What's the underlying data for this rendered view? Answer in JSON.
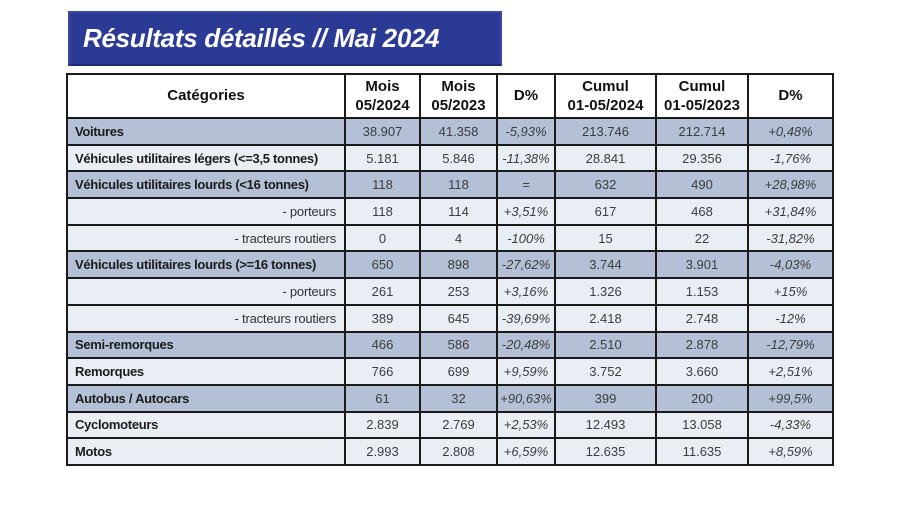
{
  "banner": {
    "title": "Résultats détaillés // Mai 2024"
  },
  "colors": {
    "banner_bg": "#2b3a94",
    "row_dark": "#b3c0d5",
    "row_light": "#e9edf4",
    "border": "#1b1b1b",
    "header_bg": "#ffffff"
  },
  "table": {
    "headers": [
      [
        "Catégories"
      ],
      [
        "Mois",
        "05/2024"
      ],
      [
        "Mois",
        "05/2023"
      ],
      [
        "D%"
      ],
      [
        "Cumul",
        "01-05/2024"
      ],
      [
        "Cumul",
        "01-05/2023"
      ],
      [
        "D%"
      ]
    ],
    "rows": [
      {
        "label": "Voitures",
        "style": "main",
        "shade": "dark",
        "values": [
          "38.907",
          "41.358",
          "-5,93%",
          "213.746",
          "212.714",
          "+0,48%"
        ]
      },
      {
        "label": "Véhicules utilitaires légers (<=3,5 tonnes)",
        "style": "main",
        "shade": "light",
        "values": [
          "5.181",
          "5.846",
          "-11,38%",
          "28.841",
          "29.356",
          "-1,76%"
        ]
      },
      {
        "label": "Véhicules utilitaires lourds (<16 tonnes)",
        "style": "main",
        "shade": "dark",
        "values": [
          "118",
          "118",
          "=",
          "632",
          "490",
          "+28,98%"
        ]
      },
      {
        "label": "- porteurs",
        "style": "sub",
        "shade": "light",
        "values": [
          "118",
          "114",
          "+3,51%",
          "617",
          "468",
          "+31,84%"
        ]
      },
      {
        "label": "- tracteurs routiers",
        "style": "sub",
        "shade": "light",
        "values": [
          "0",
          "4",
          "-100%",
          "15",
          "22",
          "-31,82%"
        ]
      },
      {
        "label": "Véhicules utilitaires lourds (>=16 tonnes)",
        "style": "main",
        "shade": "dark",
        "values": [
          "650",
          "898",
          "-27,62%",
          "3.744",
          "3.901",
          "-4,03%"
        ]
      },
      {
        "label": "- porteurs",
        "style": "sub",
        "shade": "light",
        "values": [
          "261",
          "253",
          "+3,16%",
          "1.326",
          "1.153",
          "+15%"
        ]
      },
      {
        "label": "- tracteurs routiers",
        "style": "sub",
        "shade": "light",
        "values": [
          "389",
          "645",
          "-39,69%",
          "2.418",
          "2.748",
          "-12%"
        ]
      },
      {
        "label": "Semi-remorques",
        "style": "main",
        "shade": "dark",
        "values": [
          "466",
          "586",
          "-20,48%",
          "2.510",
          "2.878",
          "-12,79%"
        ]
      },
      {
        "label": "Remorques",
        "style": "main",
        "shade": "light",
        "values": [
          "766",
          "699",
          "+9,59%",
          "3.752",
          "3.660",
          "+2,51%"
        ]
      },
      {
        "label": "Autobus / Autocars",
        "style": "main",
        "shade": "dark",
        "values": [
          "61",
          "32",
          "+90,63%",
          "399",
          "200",
          "+99,5%"
        ]
      },
      {
        "label": "Cyclomoteurs",
        "style": "main",
        "shade": "light",
        "values": [
          "2.839",
          "2.769",
          "+2,53%",
          "12.493",
          "13.058",
          "-4,33%"
        ]
      },
      {
        "label": "Motos",
        "style": "main",
        "shade": "light",
        "values": [
          "2.993",
          "2.808",
          "+6,59%",
          "12.635",
          "11.635",
          "+8,59%"
        ]
      }
    ]
  }
}
